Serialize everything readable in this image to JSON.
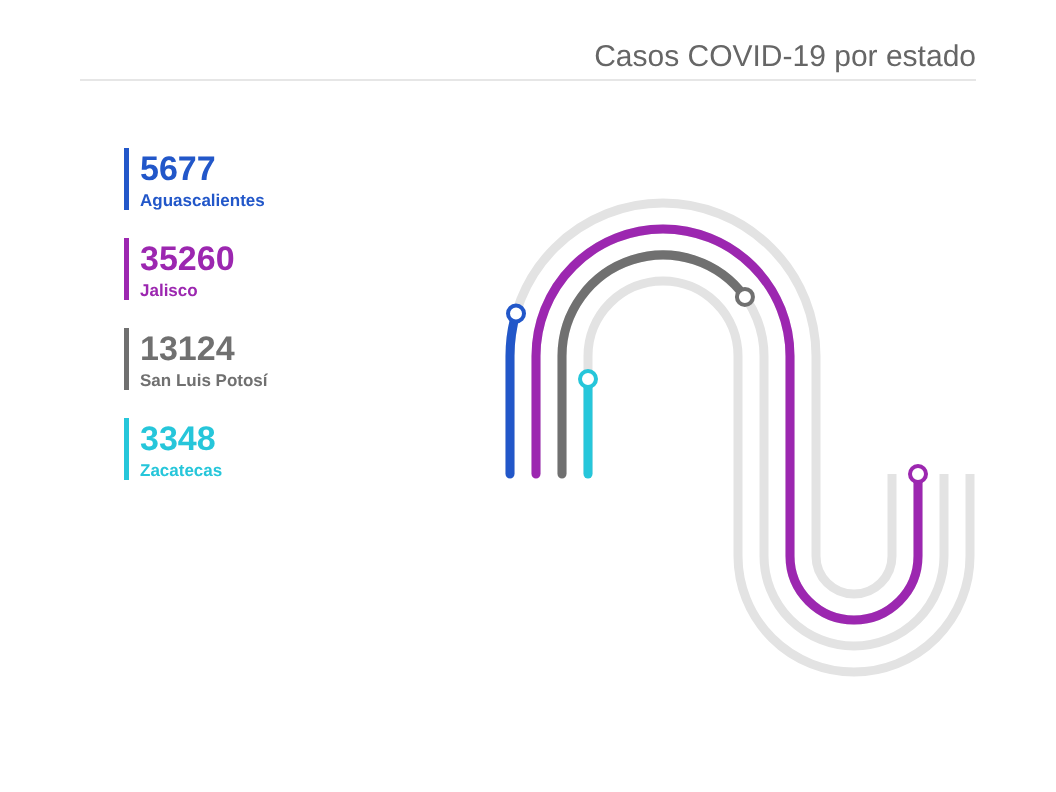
{
  "chart_data": {
    "type": "other",
    "title": "Casos COVID-19 por estado",
    "categories": [
      "Aguascalientes",
      "Jalisco",
      "San Luis Potosí",
      "Zacatecas"
    ],
    "values": [
      5677,
      35260,
      13124,
      3348
    ],
    "colors": [
      "#2257c9",
      "#9c27b0",
      "#707070",
      "#26c6da"
    ],
    "data_labels": true
  }
}
